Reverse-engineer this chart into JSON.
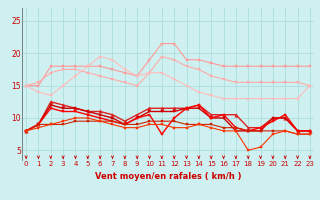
{
  "background_color": "#cff0f0",
  "grid_color": "#aadddd",
  "x_label": "Vent moyen/en rafales ( km/h )",
  "x_ticks": [
    0,
    1,
    2,
    3,
    4,
    5,
    6,
    7,
    8,
    9,
    10,
    11,
    12,
    13,
    14,
    15,
    16,
    17,
    18,
    19,
    20,
    21,
    22,
    23
  ],
  "y_ticks": [
    5,
    10,
    15,
    20,
    25
  ],
  "ylim": [
    3.5,
    27
  ],
  "xlim": [
    -0.3,
    23.3
  ],
  "series": [
    {
      "x": [
        0,
        1,
        2,
        3,
        4,
        5,
        6,
        7,
        8,
        9,
        10,
        11,
        12,
        13,
        14,
        15,
        16,
        17,
        18,
        19,
        20,
        21,
        22,
        23
      ],
      "y": [
        15.0,
        15.0,
        18.0,
        18.0,
        18.0,
        18.0,
        18.0,
        17.5,
        17.0,
        16.5,
        19.0,
        21.5,
        21.5,
        19.0,
        19.0,
        18.5,
        18.0,
        18.0,
        18.0,
        18.0,
        18.0,
        18.0,
        18.0,
        18.0
      ],
      "color": "#ff9999",
      "marker": "s",
      "markersize": 1.8,
      "linewidth": 0.8
    },
    {
      "x": [
        0,
        1,
        2,
        3,
        4,
        5,
        6,
        7,
        8,
        9,
        10,
        11,
        12,
        13,
        14,
        15,
        16,
        17,
        18,
        19,
        20,
        21,
        22,
        23
      ],
      "y": [
        15.0,
        15.5,
        17.0,
        17.5,
        17.5,
        17.0,
        16.5,
        16.0,
        15.5,
        15.0,
        17.0,
        19.5,
        19.0,
        18.0,
        17.5,
        16.5,
        16.0,
        15.5,
        15.5,
        15.5,
        15.5,
        15.5,
        15.5,
        15.0
      ],
      "color": "#ffaaaa",
      "marker": "s",
      "markersize": 1.8,
      "linewidth": 0.8
    },
    {
      "x": [
        0,
        1,
        2,
        3,
        4,
        5,
        6,
        7,
        8,
        9,
        10,
        11,
        12,
        13,
        14,
        15,
        16,
        17,
        18,
        19,
        20,
        21,
        22,
        23
      ],
      "y": [
        15.0,
        14.0,
        13.5,
        15.0,
        16.5,
        18.0,
        19.5,
        19.0,
        17.5,
        16.5,
        17.0,
        17.0,
        16.0,
        15.0,
        14.0,
        13.5,
        13.0,
        13.0,
        13.0,
        13.0,
        13.0,
        13.0,
        13.0,
        15.0
      ],
      "color": "#ffbbbb",
      "marker": "s",
      "markersize": 1.8,
      "linewidth": 0.8
    },
    {
      "x": [
        0,
        1,
        2,
        3,
        4,
        5,
        6,
        7,
        8,
        9,
        10,
        11,
        12,
        13,
        14,
        15,
        16,
        17,
        18,
        19,
        20,
        21,
        22,
        23
      ],
      "y": [
        8.0,
        9.0,
        12.5,
        12.0,
        11.5,
        11.0,
        11.0,
        10.5,
        9.5,
        10.5,
        11.5,
        11.5,
        11.5,
        11.5,
        12.0,
        10.5,
        10.5,
        10.5,
        8.5,
        8.5,
        10.0,
        10.0,
        8.0,
        8.0
      ],
      "color": "#dd2222",
      "marker": "^",
      "markersize": 2.5,
      "linewidth": 1.0
    },
    {
      "x": [
        0,
        1,
        2,
        3,
        4,
        5,
        6,
        7,
        8,
        9,
        10,
        11,
        12,
        13,
        14,
        15,
        16,
        17,
        18,
        19,
        20,
        21,
        22,
        23
      ],
      "y": [
        8.0,
        9.0,
        12.0,
        11.5,
        11.5,
        11.0,
        10.5,
        10.0,
        9.0,
        10.0,
        11.0,
        11.0,
        11.0,
        11.5,
        11.5,
        10.0,
        10.0,
        8.0,
        8.0,
        8.0,
        10.0,
        10.0,
        8.0,
        8.0
      ],
      "color": "#cc0000",
      "marker": "s",
      "markersize": 1.8,
      "linewidth": 1.0
    },
    {
      "x": [
        0,
        1,
        2,
        3,
        4,
        5,
        6,
        7,
        8,
        9,
        10,
        11,
        12,
        13,
        14,
        15,
        16,
        17,
        18,
        19,
        20,
        21,
        22,
        23
      ],
      "y": [
        8.0,
        9.0,
        11.5,
        11.0,
        11.0,
        10.5,
        10.0,
        9.5,
        9.0,
        10.0,
        10.5,
        7.5,
        10.0,
        11.5,
        12.0,
        10.0,
        10.5,
        8.5,
        8.0,
        8.5,
        9.5,
        10.5,
        8.0,
        8.0
      ],
      "color": "#ff0000",
      "marker": "s",
      "markersize": 1.8,
      "linewidth": 1.0
    },
    {
      "x": [
        0,
        1,
        2,
        3,
        4,
        5,
        6,
        7,
        8,
        9,
        10,
        11,
        12,
        13,
        14,
        15,
        16,
        17,
        18,
        19,
        20,
        21,
        22,
        23
      ],
      "y": [
        8.0,
        9.0,
        9.0,
        9.0,
        9.5,
        9.5,
        9.5,
        9.5,
        9.0,
        9.0,
        9.5,
        9.5,
        9.5,
        9.0,
        9.0,
        9.0,
        8.5,
        8.5,
        8.0,
        8.0,
        8.0,
        8.0,
        7.5,
        7.5
      ],
      "color": "#cc2200",
      "marker": "s",
      "markersize": 1.8,
      "linewidth": 0.8
    },
    {
      "x": [
        0,
        1,
        2,
        3,
        4,
        5,
        6,
        7,
        8,
        9,
        10,
        11,
        12,
        13,
        14,
        15,
        16,
        17,
        18,
        19,
        20,
        21,
        22,
        23
      ],
      "y": [
        8.0,
        8.5,
        9.0,
        9.5,
        10.0,
        10.0,
        9.5,
        9.0,
        8.5,
        8.5,
        9.0,
        9.0,
        8.5,
        8.5,
        9.0,
        8.5,
        8.0,
        8.0,
        5.0,
        5.5,
        7.5,
        8.0,
        7.5,
        7.5
      ],
      "color": "#ff3300",
      "marker": "s",
      "markersize": 1.8,
      "linewidth": 0.8
    }
  ],
  "tick_fontsize": 5.0,
  "label_fontsize": 6.0,
  "arrow_color": "#cc0000"
}
